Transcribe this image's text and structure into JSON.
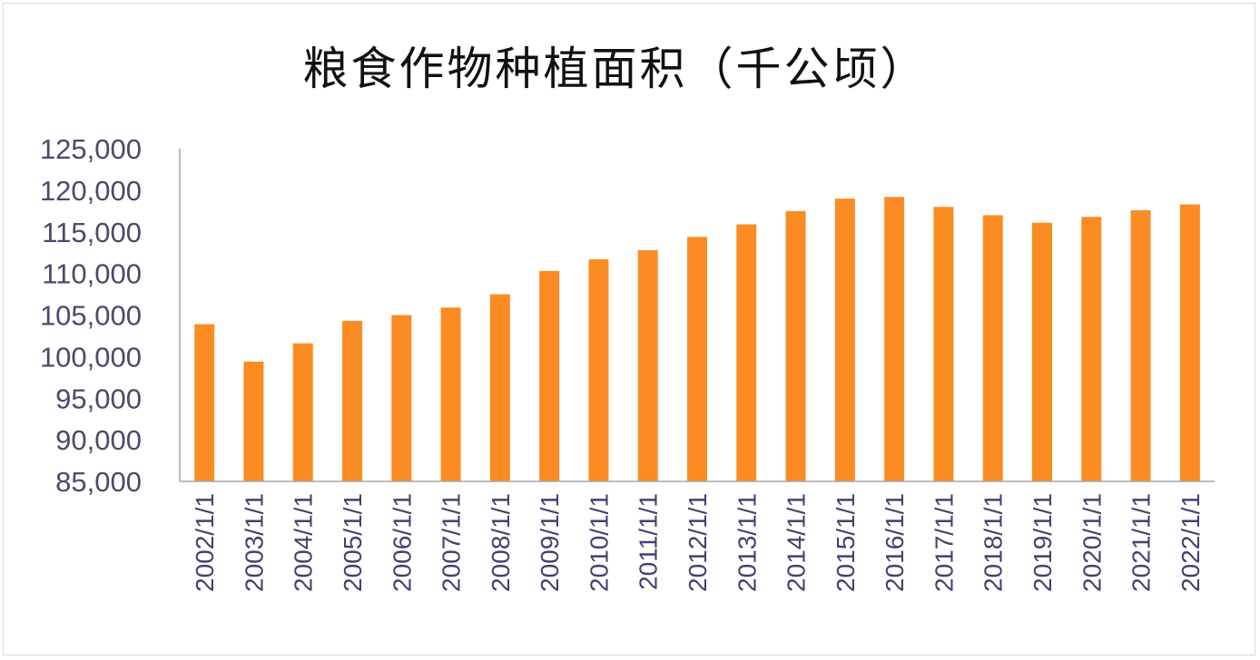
{
  "chart_data": {
    "type": "bar",
    "title": "粮食作物种植面积（千公顷）",
    "xlabel": "",
    "ylabel": "",
    "ylim": [
      85000,
      125000
    ],
    "yticks": [
      85000,
      90000,
      95000,
      100000,
      105000,
      110000,
      115000,
      120000,
      125000
    ],
    "ytick_labels": [
      "85,000",
      "90,000",
      "95,000",
      "100,000",
      "105,000",
      "110,000",
      "115,000",
      "120,000",
      "125,000"
    ],
    "categories": [
      "2002/1/1",
      "2003/1/1",
      "2004/1/1",
      "2005/1/1",
      "2006/1/1",
      "2007/1/1",
      "2008/1/1",
      "2009/1/1",
      "2010/1/1",
      "2011/1/1",
      "2012/1/1",
      "2013/1/1",
      "2014/1/1",
      "2015/1/1",
      "2016/1/1",
      "2017/1/1",
      "2018/1/1",
      "2019/1/1",
      "2020/1/1",
      "2021/1/1",
      "2022/1/1"
    ],
    "values": [
      103900,
      99400,
      101600,
      104300,
      105000,
      105900,
      107500,
      110300,
      111700,
      112800,
      114400,
      115900,
      117500,
      119000,
      119200,
      118000,
      117000,
      116100,
      116800,
      117600,
      118300
    ],
    "grid": false,
    "legend": "none",
    "bar_color": "#fb8c23"
  }
}
